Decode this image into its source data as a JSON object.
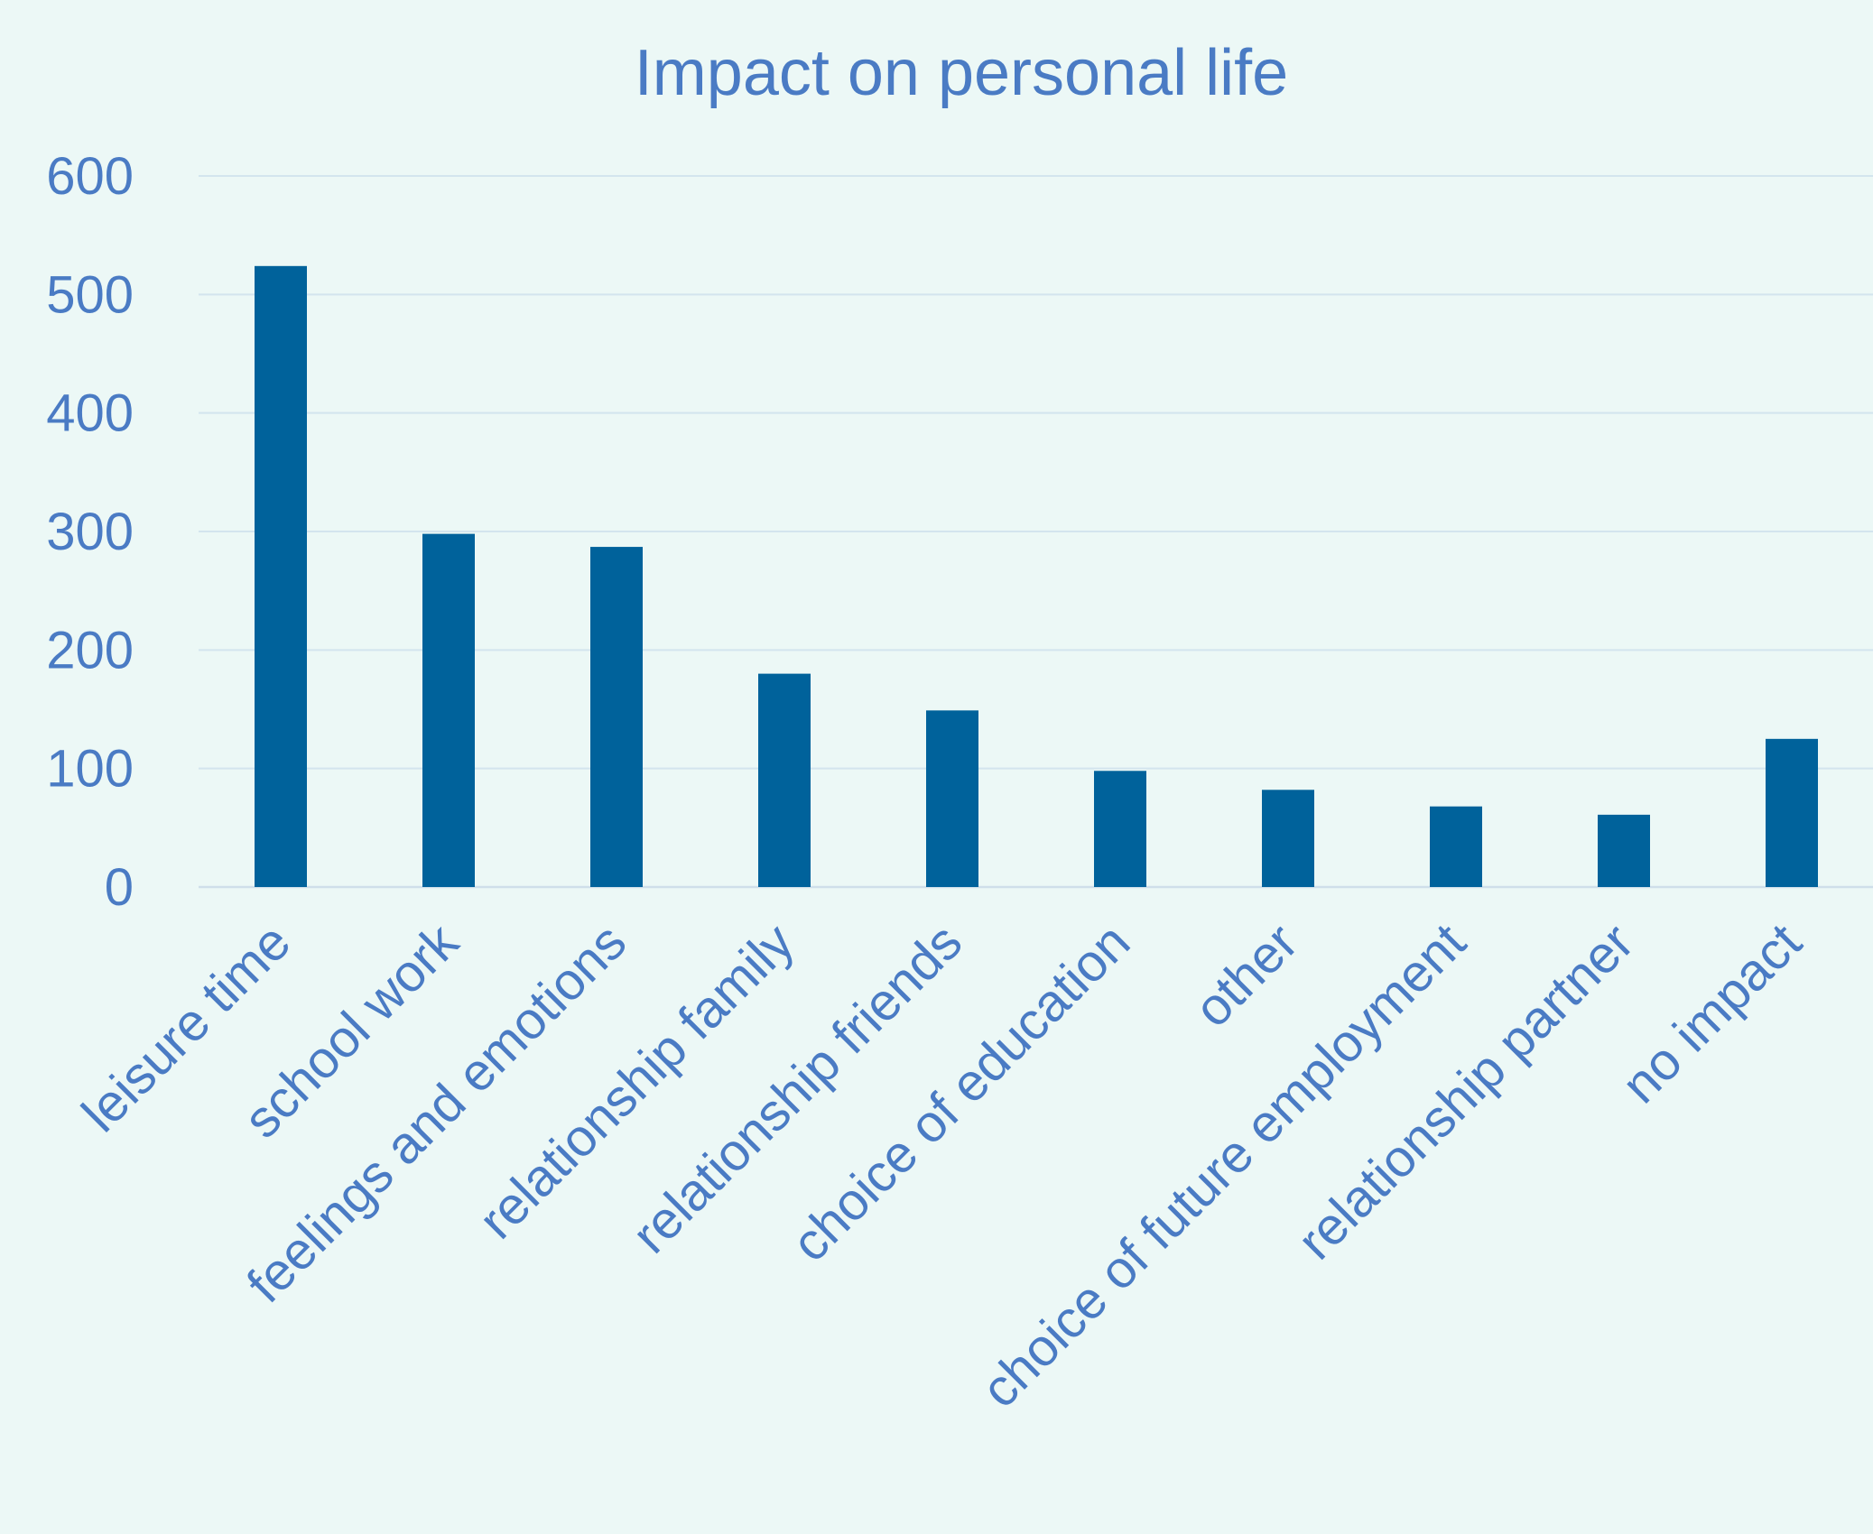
{
  "chart_data": {
    "type": "bar",
    "title": "Impact on personal life",
    "xlabel": "",
    "ylabel": "",
    "categories": [
      "leisure time",
      "school work",
      "feelings and emotions",
      "relationship family",
      "relationship friends",
      "choice of education",
      "other",
      "choice of future employment",
      "relationship partner",
      "no impact"
    ],
    "values": [
      524,
      298,
      287,
      180,
      149,
      98,
      82,
      68,
      61,
      125
    ],
    "ylim": [
      0,
      600
    ],
    "yticks": [
      "0",
      "100",
      "200",
      "300",
      "400",
      "500",
      "600"
    ],
    "grid": true,
    "legend": "none",
    "colors": {
      "bar": "#00629B",
      "text": "#4A7BC4",
      "background": "#ECF8F6",
      "grid": "#D3E5EE"
    }
  }
}
